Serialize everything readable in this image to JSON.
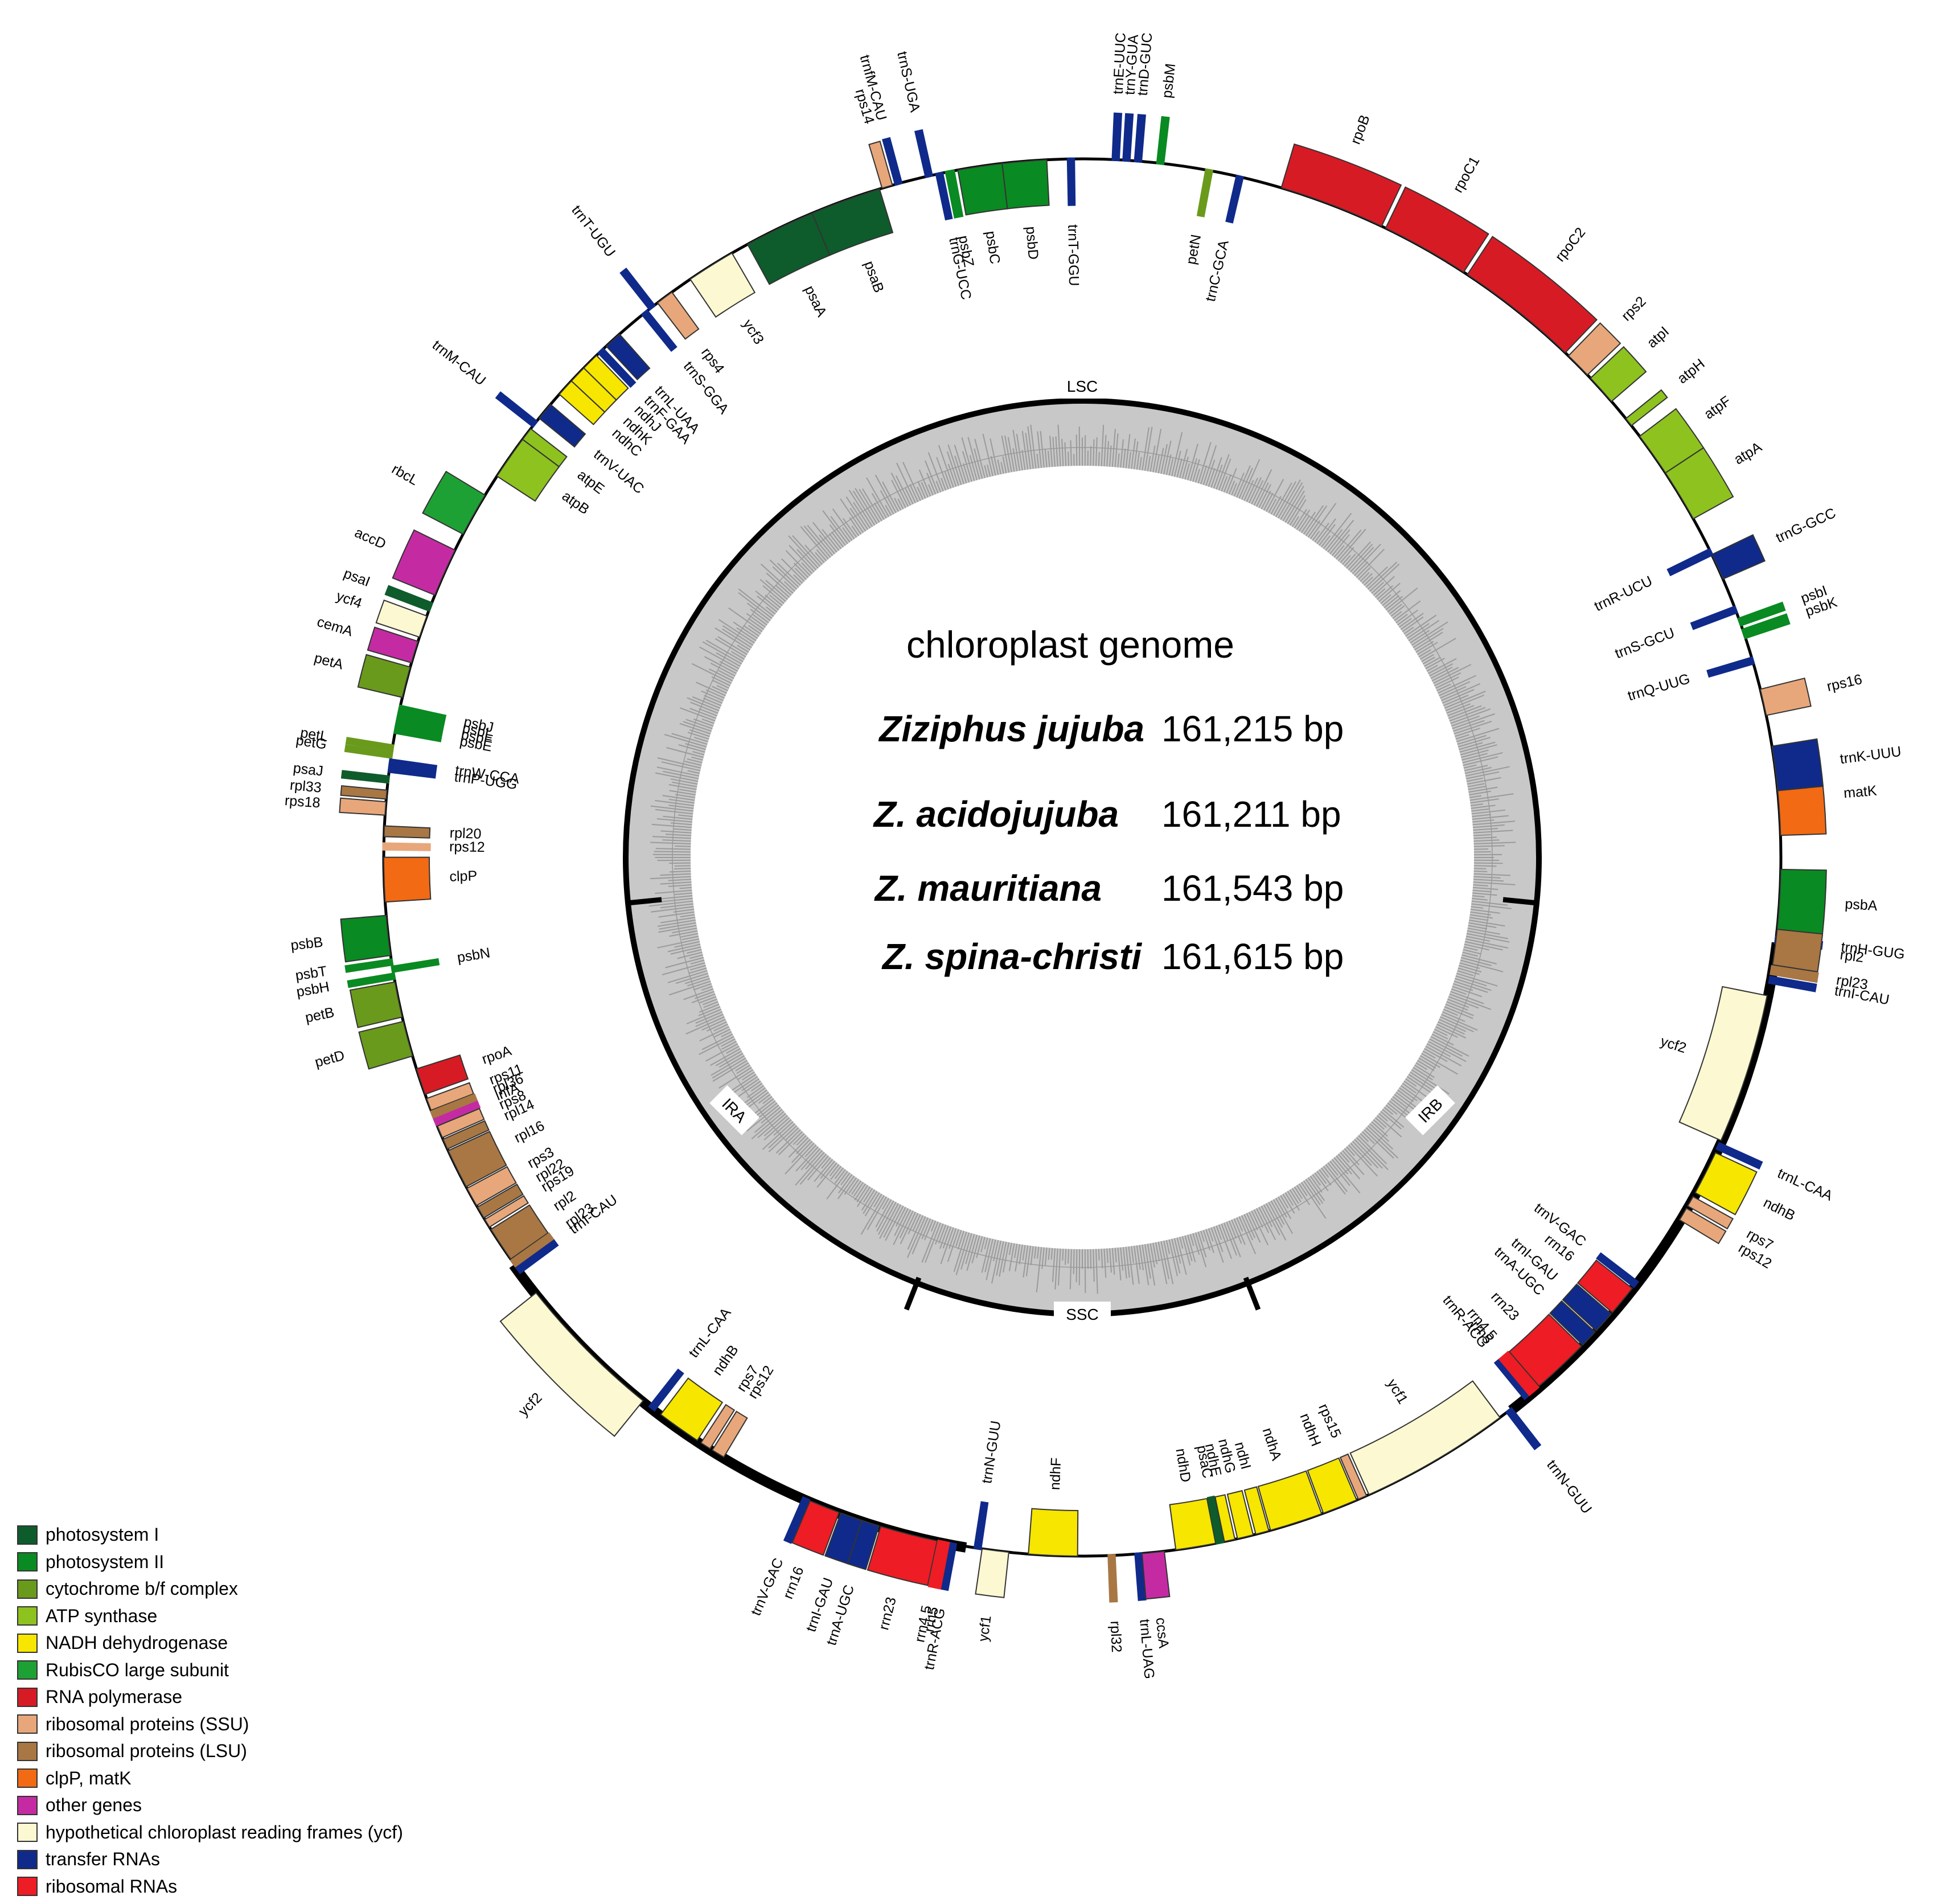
{
  "center": {
    "title": "chloroplast genome",
    "species": [
      {
        "name": "Ziziphus jujuba",
        "size": "161,215 bp"
      },
      {
        "name": "Z. acidojujuba",
        "size": "161,211 bp"
      },
      {
        "name": "Z. mauritiana",
        "size": "161,543 bp"
      },
      {
        "name": "Z. spina-christi",
        "size": "161,615 bp"
      }
    ]
  },
  "regions": {
    "lsc": "LSC",
    "ssc": "SSC",
    "ira": "IRA",
    "irb": "IRB"
  },
  "legend": [
    {
      "label": "photosystem I",
      "color": "#0e5c2c"
    },
    {
      "label": "photosystem II",
      "color": "#0a8a22"
    },
    {
      "label": "cytochrome b/f complex",
      "color": "#6a9a1c"
    },
    {
      "label": "ATP synthase",
      "color": "#8dc21f"
    },
    {
      "label": "NADH dehydrogenase",
      "color": "#f6e600"
    },
    {
      "label": "RubisCO large subunit",
      "color": "#1ea134"
    },
    {
      "label": "RNA polymerase",
      "color": "#d71b25"
    },
    {
      "label": "ribosomal proteins (SSU)",
      "color": "#e8a77a"
    },
    {
      "label": "ribosomal proteins (LSU)",
      "color": "#a87744"
    },
    {
      "label": "clpP, matK",
      "color": "#f26a13"
    },
    {
      "label": "other genes",
      "color": "#c42ba3"
    },
    {
      "label": "hypothetical chloroplast reading frames (ycf)",
      "color": "#fcf8d2"
    },
    {
      "label": "transfer RNAs",
      "color": "#0f2a8a"
    },
    {
      "label": "ribosomal RNAs",
      "color": "#ee1c24"
    }
  ],
  "genes": [
    {
      "name": "trnH-GUG",
      "cat": 12,
      "a": 0.0,
      "w": 0.6,
      "side": "out"
    },
    {
      "name": "psbA",
      "cat": 1,
      "a": 1.2,
      "w": 7.0,
      "side": "out"
    },
    {
      "name": "matK",
      "cat": 9,
      "a": 12.0,
      "w": 8.0,
      "side": "out"
    },
    {
      "name": "trnK-UUU",
      "cat": 12,
      "a": 17.0,
      "w": 5.0,
      "side": "out"
    },
    {
      "name": "rps16",
      "cat": 7,
      "a": 25.5,
      "w": 3.0,
      "side": "out"
    },
    {
      "name": "trnQ-UUG",
      "cat": 12,
      "a": 31.5,
      "w": 0.6,
      "side": "in"
    },
    {
      "name": "psbK",
      "cat": 1,
      "a": 34.5,
      "w": 0.9,
      "side": "out"
    },
    {
      "name": "psbI",
      "cat": 1,
      "a": 36.0,
      "w": 0.7,
      "side": "out"
    },
    {
      "name": "trnS-GCU",
      "cat": 12,
      "a": 37.5,
      "w": 0.6,
      "side": "in"
    },
    {
      "name": "trnG-GCC",
      "cat": 12,
      "a": 41.5,
      "w": 3.0,
      "side": "out"
    },
    {
      "name": "trnR-UCU",
      "cat": 12,
      "a": 44.5,
      "w": 0.6,
      "side": "in"
    },
    {
      "name": "atpA",
      "cat": 3,
      "a": 49.0,
      "w": 6.0,
      "side": "out"
    },
    {
      "name": "atpF",
      "cat": 3,
      "a": 55.0,
      "w": 5.0,
      "side": "out"
    },
    {
      "name": "atpH",
      "cat": 3,
      "a": 61.5,
      "w": 1.0,
      "side": "out"
    },
    {
      "name": "atpI",
      "cat": 3,
      "a": 65.0,
      "w": 3.5,
      "side": "out"
    },
    {
      "name": "rps2",
      "cat": 7,
      "a": 69.0,
      "w": 3.0,
      "side": "out"
    },
    {
      "name": "rpoC2",
      "cat": 6,
      "a": 72.5,
      "w": 14.0,
      "side": "out"
    },
    {
      "name": "rpoC1",
      "cat": 6,
      "a": 87.0,
      "w": 10.0,
      "side": "out"
    },
    {
      "name": "rpoB",
      "cat": 6,
      "a": 97.5,
      "w": 12.0,
      "side": "out"
    },
    {
      "name": "trnC-GCA",
      "cat": 12,
      "a": 114.0,
      "w": 0.6,
      "side": "in"
    },
    {
      "name": "petN",
      "cat": 2,
      "a": 117.5,
      "w": 0.6,
      "side": "in"
    },
    {
      "name": "psbM",
      "cat": 1,
      "a": 123.0,
      "w": 0.6,
      "side": "out"
    },
    {
      "name": "trnD-GUC",
      "cat": 12,
      "a": 125.5,
      "w": 0.6,
      "side": "out"
    },
    {
      "name": "trnY-GUA",
      "cat": 12,
      "a": 126.8,
      "w": 0.6,
      "side": "out"
    },
    {
      "name": "trnE-UUC",
      "cat": 12,
      "a": 128.0,
      "w": 0.6,
      "side": "out"
    },
    {
      "name": "trnT-GGU",
      "cat": 12,
      "a": 133.0,
      "w": 0.6,
      "side": "in"
    },
    {
      "name": "psbD",
      "cat": 1,
      "a": 136.0,
      "w": 5.0,
      "side": "in"
    },
    {
      "name": "psbC",
      "cat": 1,
      "a": 141.0,
      "w": 5.0,
      "side": "in"
    },
    {
      "name": "psbZ",
      "cat": 1,
      "a": 146.5,
      "w": 0.8,
      "side": "in"
    },
    {
      "name": "trnG-UCC",
      "cat": 12,
      "a": 147.8,
      "w": 0.6,
      "side": "in"
    },
    {
      "name": "trnS-UGA",
      "cat": 12,
      "a": 149.0,
      "w": 0.6,
      "side": "out"
    },
    {
      "name": "trnfM-CAU",
      "cat": 12,
      "a": 152.5,
      "w": 0.6,
      "side": "out"
    },
    {
      "name": "rps14",
      "cat": 7,
      "a": 153.5,
      "w": 1.2,
      "side": "out"
    },
    {
      "name": "psaB",
      "cat": 0,
      "a": 155.0,
      "w": 8.0,
      "side": "in"
    },
    {
      "name": "psaA",
      "cat": 0,
      "a": 163.0,
      "w": 8.0,
      "side": "in"
    },
    {
      "name": "ycf3",
      "cat": 11,
      "a": 173.0,
      "w": 5.5,
      "side": "in"
    },
    {
      "name": "rps4",
      "cat": 7,
      "a": 181.0,
      "w": 2.0,
      "side": "in"
    },
    {
      "name": "trnT-UGU",
      "cat": 12,
      "a": 183.5,
      "w": 0.6,
      "side": "out"
    },
    {
      "name": "trnS-GGA",
      "cat": 12,
      "a": 184.5,
      "w": 0.6,
      "side": "in"
    },
    {
      "name": "trnL-UAA",
      "cat": 12,
      "a": 188.5,
      "w": 2.0,
      "side": "in"
    },
    {
      "name": "trnF-GAA",
      "cat": 12,
      "a": 191.0,
      "w": 0.6,
      "side": "in"
    },
    {
      "name": "ndhJ",
      "cat": 4,
      "a": 192.0,
      "w": 2.0,
      "side": "in"
    },
    {
      "name": "ndhK",
      "cat": 4,
      "a": 194.0,
      "w": 2.0,
      "side": "in"
    },
    {
      "name": "ndhC",
      "cat": 4,
      "a": 196.0,
      "w": 2.0,
      "side": "in"
    },
    {
      "name": "trnV-UAC",
      "cat": 12,
      "a": 199.5,
      "w": 2.0,
      "side": "in"
    },
    {
      "name": "trnM-CAU",
      "cat": 12,
      "a": 202.0,
      "w": 0.6,
      "side": "out"
    },
    {
      "name": "atpE",
      "cat": 3,
      "a": 203.0,
      "w": 1.5,
      "side": "in"
    },
    {
      "name": "atpB",
      "cat": 3,
      "a": 204.5,
      "w": 5.0,
      "side": "in"
    },
    {
      "name": "rbcL",
      "cat": 5,
      "a": 212.0,
      "w": 5.0,
      "side": "out"
    },
    {
      "name": "accD",
      "cat": 10,
      "a": 219.0,
      "w": 5.5,
      "side": "out"
    },
    {
      "name": "psaI",
      "cat": 0,
      "a": 225.5,
      "w": 0.8,
      "side": "out"
    },
    {
      "name": "ycf4",
      "cat": 11,
      "a": 227.0,
      "w": 2.5,
      "side": "out"
    },
    {
      "name": "cemA",
      "cat": 10,
      "a": 230.0,
      "w": 2.5,
      "side": "out"
    },
    {
      "name": "petA",
      "cat": 2,
      "a": 233.0,
      "w": 3.5,
      "side": "out"
    },
    {
      "name": "psbJ",
      "cat": 1,
      "a": 237.5,
      "w": 0.5,
      "side": "in"
    },
    {
      "name": "psbL",
      "cat": 1,
      "a": 238.3,
      "w": 0.5,
      "side": "in"
    },
    {
      "name": "psbF",
      "cat": 1,
      "a": 239.1,
      "w": 0.5,
      "side": "in"
    },
    {
      "name": "psbE",
      "cat": 1,
      "a": 239.9,
      "w": 0.6,
      "side": "in"
    },
    {
      "name": "petL",
      "cat": 2,
      "a": 242.0,
      "w": 0.5,
      "side": "out"
    },
    {
      "name": "petG",
      "cat": 2,
      "a": 242.8,
      "w": 0.5,
      "side": "out"
    },
    {
      "name": "trnW-CCA",
      "cat": 12,
      "a": 243.6,
      "w": 0.5,
      "side": "in"
    },
    {
      "name": "trnP-UGG",
      "cat": 12,
      "a": 244.4,
      "w": 0.5,
      "side": "in"
    },
    {
      "name": "psaJ",
      "cat": 0,
      "a": 245.5,
      "w": 0.6,
      "side": "out"
    },
    {
      "name": "rpl33",
      "cat": 8,
      "a": 247.0,
      "w": 1.0,
      "side": "out"
    },
    {
      "name": "rps18",
      "cat": 7,
      "a": 248.3,
      "w": 1.5,
      "side": "out"
    },
    {
      "name": "rpl20",
      "cat": 8,
      "a": 251.0,
      "w": 1.2,
      "side": "in"
    },
    {
      "name": "rps12",
      "cat": 7,
      "a": 253.0,
      "w": 0.6,
      "side": "in"
    },
    {
      "name": "clpP",
      "cat": 9,
      "a": 254.5,
      "w": 5.0,
      "side": "in"
    },
    {
      "name": "psbB",
      "cat": 1,
      "a": 261.0,
      "w": 4.5,
      "side": "out"
    },
    {
      "name": "psbT",
      "cat": 1,
      "a": 266.0,
      "w": 0.5,
      "side": "out"
    },
    {
      "name": "psbN",
      "cat": 1,
      "a": 266.8,
      "w": 0.5,
      "side": "in"
    },
    {
      "name": "psbH",
      "cat": 1,
      "a": 267.6,
      "w": 0.5,
      "side": "out"
    },
    {
      "name": "petB",
      "cat": 2,
      "a": 268.5,
      "w": 4.0,
      "side": "out"
    },
    {
      "name": "petD",
      "cat": 2,
      "a": 273.0,
      "w": 4.0,
      "side": "out"
    },
    {
      "name": "rpoA",
      "cat": 6,
      "a": 278.5,
      "w": 3.0,
      "side": "in"
    },
    {
      "name": "rps11",
      "cat": 7,
      "a": 282.0,
      "w": 1.4,
      "side": "in"
    },
    {
      "name": "rpl36",
      "cat": 8,
      "a": 283.6,
      "w": 0.6,
      "side": "in"
    },
    {
      "name": "infA",
      "cat": 10,
      "a": 284.5,
      "w": 0.6,
      "side": "in"
    },
    {
      "name": "rps8",
      "cat": 7,
      "a": 285.3,
      "w": 1.4,
      "side": "in"
    },
    {
      "name": "rpl14",
      "cat": 8,
      "a": 286.9,
      "w": 1.2,
      "side": "in"
    },
    {
      "name": "rpl16",
      "cat": 8,
      "a": 288.3,
      "w": 4.5,
      "side": "in"
    },
    {
      "name": "rps3",
      "cat": 7,
      "a": 293.0,
      "w": 2.2,
      "side": "in"
    },
    {
      "name": "rpl22",
      "cat": 8,
      "a": 295.4,
      "w": 1.4,
      "side": "in"
    },
    {
      "name": "rps19",
      "cat": 7,
      "a": 297.0,
      "w": 1.0,
      "side": "in"
    },
    {
      "name": "rpl2",
      "cat": 8,
      "a": 298.3,
      "w": 4.0,
      "side": "in"
    },
    {
      "name": "rpl23",
      "cat": 8,
      "a": 302.5,
      "w": 0.8,
      "side": "in"
    },
    {
      "name": "trnI-CAU",
      "cat": 12,
      "a": 303.5,
      "w": 0.6,
      "side": "in"
    },
    {
      "name": "ycf2",
      "cat": 11,
      "a": 307.0,
      "w": 17.0,
      "side": "out"
    },
    {
      "name": "trnL-CAA",
      "cat": 12,
      "a": 325.0,
      "w": 0.6,
      "side": "in"
    },
    {
      "name": "ndhB",
      "cat": 4,
      "a": 326.5,
      "w": 5.0,
      "side": "in"
    },
    {
      "name": "rps7",
      "cat": 7,
      "a": 332.0,
      "w": 1.2,
      "side": "in"
    },
    {
      "name": "rps12",
      "cat": 7,
      "a": 333.5,
      "w": 1.5,
      "side": "in"
    },
    {
      "name": "trnV-GAC",
      "cat": 12,
      "a": 345.0,
      "w": 0.6,
      "side": "out"
    },
    {
      "name": "rrn16",
      "cat": 13,
      "a": 345.8,
      "w": 3.5,
      "side": "out"
    },
    {
      "name": "trnI-GAU",
      "cat": 12,
      "a": 349.5,
      "w": 2.5,
      "side": "out"
    },
    {
      "name": "trnA-UGC",
      "cat": 12,
      "a": 352.0,
      "w": 2.0,
      "side": "out"
    },
    {
      "name": "rrn23",
      "cat": 13,
      "a": 354.2,
      "w": 6.5,
      "side": "out"
    },
    {
      "name": "rrn4.5",
      "cat": 13,
      "a": 360.9,
      "w": 0.5,
      "side": "out"
    },
    {
      "name": "rrn5",
      "cat": 13,
      "a": 361.6,
      "w": 0.5,
      "side": "out"
    },
    {
      "name": "trnR-ACG",
      "cat": 12,
      "a": 362.3,
      "w": 0.5,
      "side": "out"
    },
    {
      "name": "trnN-GUU",
      "cat": 12,
      "a": 365.0,
      "w": 0.6,
      "side": "in"
    },
    {
      "name": "ycf1",
      "cat": 11,
      "a": 365.8,
      "w": 3.0,
      "side": "out"
    },
    {
      "name": "ndhF",
      "cat": 4,
      "a": 371.0,
      "w": 5.5,
      "side": "in"
    },
    {
      "name": "rpl32",
      "cat": 8,
      "a": 380.0,
      "w": 0.6,
      "side": "out"
    },
    {
      "name": "trnL-UAG",
      "cat": 12,
      "a": 383.0,
      "w": 0.6,
      "side": "out"
    },
    {
      "name": "ccsA",
      "cat": 10,
      "a": 383.7,
      "w": 2.5,
      "side": "out"
    },
    {
      "name": "ndhD",
      "cat": 4,
      "a": 387.5,
      "w": 4.5,
      "side": "in"
    },
    {
      "name": "psaC",
      "cat": 0,
      "a": 392.2,
      "w": 0.6,
      "side": "in"
    },
    {
      "name": "ndhE",
      "cat": 4,
      "a": 393.0,
      "w": 1.2,
      "side": "in"
    },
    {
      "name": "ndhG",
      "cat": 4,
      "a": 394.5,
      "w": 1.8,
      "side": "in"
    },
    {
      "name": "ndhI",
      "cat": 4,
      "a": 396.6,
      "w": 1.5,
      "side": "in"
    },
    {
      "name": "ndhA",
      "cat": 4,
      "a": 398.3,
      "w": 6.0,
      "side": "in"
    },
    {
      "name": "ndhH",
      "cat": 4,
      "a": 404.5,
      "w": 4.0,
      "side": "in"
    },
    {
      "name": "rps15",
      "cat": 7,
      "a": 408.7,
      "w": 1.0,
      "side": "in"
    },
    {
      "name": "ycf1",
      "cat": 11,
      "a": 410.0,
      "w": 17.0,
      "side": "in"
    },
    {
      "name": "trnN-GUU",
      "cat": 12,
      "a": 428.0,
      "w": 0.6,
      "side": "out"
    },
    {
      "name": "trnR-ACG",
      "cat": 12,
      "a": 430.5,
      "w": 0.5,
      "side": "in"
    },
    {
      "name": "rrn5",
      "cat": 13,
      "a": 431.2,
      "w": 0.5,
      "side": "in"
    },
    {
      "name": "rrn4.5",
      "cat": 13,
      "a": 431.9,
      "w": 0.5,
      "side": "in"
    },
    {
      "name": "rrn23",
      "cat": 13,
      "a": 432.6,
      "w": 6.5,
      "side": "in"
    },
    {
      "name": "trnA-UGC",
      "cat": 12,
      "a": 439.3,
      "w": 2.0,
      "side": "in"
    },
    {
      "name": "trnI-GAU",
      "cat": 12,
      "a": 441.5,
      "w": 2.5,
      "side": "in"
    },
    {
      "name": "rrn16",
      "cat": 13,
      "a": 444.2,
      "w": 3.5,
      "side": "in"
    },
    {
      "name": "trnV-GAC",
      "cat": 12,
      "a": 448.0,
      "w": 0.6,
      "side": "in"
    },
    {
      "name": "rps12",
      "cat": 7,
      "a": 457.0,
      "w": 1.5,
      "side": "out"
    },
    {
      "name": "rps7",
      "cat": 7,
      "a": 458.8,
      "w": 1.2,
      "side": "out"
    },
    {
      "name": "ndhB",
      "cat": 4,
      "a": 460.5,
      "w": 5.0,
      "side": "out"
    },
    {
      "name": "trnL-CAA",
      "cat": 12,
      "a": 466.0,
      "w": 0.6,
      "side": "out"
    },
    {
      "name": "ycf2",
      "cat": 11,
      "a": 467.0,
      "w": 17.0,
      "side": "in"
    },
    {
      "name": "trnI-CAU",
      "cat": 12,
      "a": 485.5,
      "w": 0.6,
      "side": "out"
    },
    {
      "name": "rpl23",
      "cat": 8,
      "a": 486.5,
      "w": 0.8,
      "side": "out"
    },
    {
      "name": "rpl2",
      "cat": 8,
      "a": 487.5,
      "w": 4.0,
      "side": "out"
    }
  ]
}
